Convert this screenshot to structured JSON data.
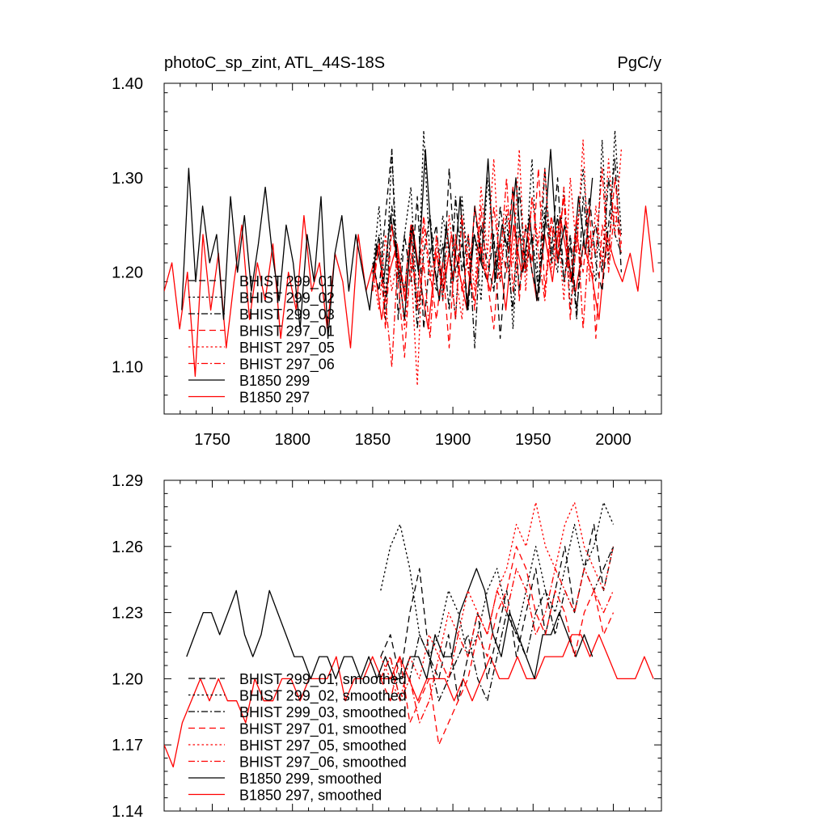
{
  "chart_data": [
    {
      "type": "line",
      "title_left": "photoC_sp_zint, ATL_44S-18S",
      "title_right": "PgC/y",
      "xlim": [
        1720,
        2030
      ],
      "ylim": [
        1.05,
        1.4
      ],
      "xticks": [
        1750,
        1800,
        1850,
        1900,
        1950,
        2000
      ],
      "xtick_labels": [
        "1750",
        "1800",
        "1850",
        "1900",
        "1950",
        "2000"
      ],
      "yticks": [
        1.1,
        1.2,
        1.3,
        1.4
      ],
      "ytick_labels": [
        "1.10",
        "1.20",
        "1.30",
        "1.40"
      ],
      "legend": [
        "BHIST 299_01",
        "BHIST 299_02",
        "BHIST 299_03",
        "BHIST 297_01",
        "BHIST 297_05",
        "BHIST 297_06",
        "B1850 299",
        "B1850 297"
      ],
      "series": [
        {
          "name": "BHIST 299_01",
          "color": "#000000",
          "dash": "dashed",
          "x_range": [
            1850,
            2005
          ],
          "values": [
            1.21,
            1.18,
            1.26,
            1.33,
            1.15,
            1.24,
            1.19,
            1.28,
            1.14,
            1.22,
            1.25,
            1.17,
            1.31,
            1.2,
            1.23,
            1.16,
            1.27,
            1.21,
            1.19,
            1.24,
            1.13,
            1.22,
            1.29,
            1.18,
            1.25,
            1.2,
            1.17,
            1.26,
            1.22,
            1.3,
            1.19,
            1.24,
            1.16,
            1.23,
            1.28,
            1.21,
            1.18,
            1.25,
            1.32,
            1.2
          ]
        },
        {
          "name": "BHIST 299_02",
          "color": "#000000",
          "dash": "dotted",
          "x_range": [
            1850,
            2005
          ],
          "values": [
            1.2,
            1.27,
            1.17,
            1.33,
            1.19,
            1.24,
            1.29,
            1.16,
            1.35,
            1.21,
            1.18,
            1.26,
            1.22,
            1.15,
            1.28,
            1.2,
            1.24,
            1.17,
            1.3,
            1.23,
            1.19,
            1.26,
            1.14,
            1.25,
            1.21,
            1.32,
            1.18,
            1.27,
            1.23,
            1.2,
            1.29,
            1.16,
            1.24,
            1.31,
            1.22,
            1.19,
            1.34,
            1.21,
            1.35,
            1.24
          ]
        },
        {
          "name": "BHIST 299_03",
          "color": "#000000",
          "dash": "dashdot",
          "x_range": [
            1850,
            2005
          ],
          "values": [
            1.19,
            1.24,
            1.15,
            1.27,
            1.21,
            1.18,
            1.25,
            1.14,
            1.22,
            1.26,
            1.19,
            1.23,
            1.16,
            1.28,
            1.2,
            1.24,
            1.12,
            1.25,
            1.21,
            1.18,
            1.27,
            1.22,
            1.16,
            1.29,
            1.2,
            1.24,
            1.18,
            1.31,
            1.21,
            1.26,
            1.19,
            1.23,
            1.15,
            1.28,
            1.22,
            1.25,
            1.2,
            1.3,
            1.24,
            1.22
          ]
        },
        {
          "name": "BHIST 297_01",
          "color": "#ff0000",
          "dash": "dashed",
          "x_range": [
            1850,
            2005
          ],
          "values": [
            1.18,
            1.23,
            1.14,
            1.25,
            1.19,
            1.11,
            1.22,
            1.17,
            1.26,
            1.2,
            1.15,
            1.21,
            1.12,
            1.24,
            1.18,
            1.22,
            1.16,
            1.27,
            1.19,
            1.14,
            1.23,
            1.2,
            1.29,
            1.17,
            1.25,
            1.21,
            1.31,
            1.18,
            1.26,
            1.22,
            1.28,
            1.15,
            1.24,
            1.2,
            1.27,
            1.13,
            1.25,
            1.22,
            1.3,
            1.23
          ]
        },
        {
          "name": "BHIST 297_05",
          "color": "#ff0000",
          "dash": "dotted",
          "x_range": [
            1850,
            2005
          ],
          "values": [
            1.2,
            1.16,
            1.24,
            1.18,
            1.22,
            1.14,
            1.21,
            1.08,
            1.25,
            1.19,
            1.23,
            1.17,
            1.26,
            1.2,
            1.15,
            1.24,
            1.18,
            1.29,
            1.22,
            1.32,
            1.19,
            1.27,
            1.21,
            1.33,
            1.18,
            1.28,
            1.23,
            1.31,
            1.2,
            1.25,
            1.17,
            1.3,
            1.22,
            1.34,
            1.19,
            1.27,
            1.21,
            1.32,
            1.24,
            1.33
          ]
        },
        {
          "name": "BHIST 297_06",
          "color": "#ff0000",
          "dash": "dashdot",
          "x_range": [
            1850,
            2005
          ],
          "values": [
            1.19,
            1.23,
            1.17,
            1.1,
            1.22,
            1.18,
            1.25,
            1.16,
            1.21,
            1.13,
            1.24,
            1.19,
            1.22,
            1.15,
            1.26,
            1.2,
            1.17,
            1.23,
            1.19,
            1.27,
            1.21,
            1.3,
            1.18,
            1.24,
            1.2,
            1.28,
            1.22,
            1.17,
            1.25,
            1.21,
            1.29,
            1.19,
            1.26,
            1.14,
            1.24,
            1.22,
            1.31,
            1.2,
            1.27,
            1.22
          ]
        },
        {
          "name": "B1850 299",
          "color": "#000000",
          "dash": "solid",
          "x_range": [
            1731,
            1987
          ],
          "values": [
            1.16,
            1.31,
            1.19,
            1.27,
            1.21,
            1.24,
            1.15,
            1.28,
            1.2,
            1.26,
            1.18,
            1.23,
            1.29,
            1.22,
            1.17,
            1.25,
            1.21,
            1.14,
            1.24,
            1.19,
            1.28,
            1.13,
            1.22,
            1.26,
            1.18,
            1.24,
            1.2,
            1.16,
            1.23,
            1.19,
            1.26,
            1.21,
            1.15,
            1.25,
            1.2,
            1.33,
            1.22,
            1.17,
            1.25,
            1.19,
            1.28,
            1.16,
            1.24,
            1.21,
            1.32,
            1.19,
            1.25,
            1.22,
            1.3,
            1.2,
            1.26,
            1.17,
            1.23,
            1.33,
            1.21,
            1.25,
            1.19,
            1.28,
            1.22,
            1.3
          ]
        },
        {
          "name": "B1850 297",
          "color": "#ff0000",
          "dash": "solid",
          "x_range": [
            1720,
            2025
          ],
          "values": [
            1.18,
            1.21,
            1.14,
            1.2,
            1.09,
            1.24,
            1.16,
            1.22,
            1.12,
            1.19,
            1.25,
            1.15,
            1.21,
            1.17,
            1.23,
            1.13,
            1.2,
            1.16,
            1.26,
            1.18,
            1.21,
            1.14,
            1.22,
            1.19,
            1.12,
            1.24,
            1.18,
            1.21,
            1.15,
            1.2,
            1.23,
            1.17,
            1.25,
            1.19,
            1.14,
            1.22,
            1.18,
            1.24,
            1.2,
            1.16,
            1.27,
            1.21,
            1.18,
            1.23,
            1.16,
            1.25,
            1.2,
            1.22,
            1.17,
            1.24,
            1.19,
            1.26,
            1.21,
            1.18,
            1.23,
            1.2,
            1.15,
            1.24,
            1.21,
            1.19,
            1.22,
            1.18,
            1.27,
            1.2
          ]
        }
      ]
    },
    {
      "type": "line",
      "xlim": [
        1720,
        2030
      ],
      "ylim": [
        1.14,
        1.29
      ],
      "yticks": [
        1.14,
        1.17,
        1.2,
        1.23,
        1.26,
        1.29
      ],
      "ytick_labels": [
        "1.14",
        "1.17",
        "1.20",
        "1.23",
        "1.26",
        "1.29"
      ],
      "legend": [
        "BHIST 299_01, smoothed",
        "BHIST 299_02, smoothed",
        "BHIST 299_03, smoothed",
        "BHIST 297_01, smoothed",
        "BHIST 297_05, smoothed",
        "BHIST 297_06, smoothed",
        "B1850 299, smoothed",
        "B1850 297, smoothed"
      ],
      "series": [
        {
          "name": "BHIST 299_01, smoothed",
          "color": "#000000",
          "dash": "dashed",
          "x_range": [
            1855,
            2000
          ],
          "values": [
            1.21,
            1.22,
            1.2,
            1.23,
            1.25,
            1.21,
            1.2,
            1.22,
            1.19,
            1.21,
            1.23,
            1.2,
            1.22,
            1.24,
            1.21,
            1.23,
            1.25,
            1.22,
            1.24,
            1.26,
            1.23,
            1.25,
            1.27,
            1.24,
            1.26
          ]
        },
        {
          "name": "BHIST 299_02, smoothed",
          "color": "#000000",
          "dash": "dotted",
          "x_range": [
            1855,
            2000
          ],
          "values": [
            1.24,
            1.26,
            1.27,
            1.25,
            1.22,
            1.21,
            1.22,
            1.24,
            1.23,
            1.21,
            1.22,
            1.24,
            1.25,
            1.23,
            1.22,
            1.24,
            1.26,
            1.24,
            1.23,
            1.25,
            1.27,
            1.25,
            1.26,
            1.28,
            1.27
          ]
        },
        {
          "name": "BHIST 299_03, smoothed",
          "color": "#000000",
          "dash": "dashdot",
          "x_range": [
            1855,
            2000
          ],
          "values": [
            1.2,
            1.21,
            1.19,
            1.2,
            1.22,
            1.21,
            1.19,
            1.2,
            1.21,
            1.22,
            1.2,
            1.19,
            1.21,
            1.23,
            1.22,
            1.21,
            1.23,
            1.24,
            1.22,
            1.24,
            1.23,
            1.25,
            1.24,
            1.25,
            1.26
          ]
        },
        {
          "name": "BHIST 297_01, smoothed",
          "color": "#ff0000",
          "dash": "dashed",
          "x_range": [
            1855,
            2000
          ],
          "values": [
            1.2,
            1.19,
            1.21,
            1.18,
            1.19,
            1.2,
            1.17,
            1.18,
            1.19,
            1.2,
            1.22,
            1.21,
            1.23,
            1.24,
            1.26,
            1.25,
            1.23,
            1.22,
            1.24,
            1.23,
            1.21,
            1.23,
            1.24,
            1.22,
            1.23
          ]
        },
        {
          "name": "BHIST 297_05, smoothed",
          "color": "#ff0000",
          "dash": "dotted",
          "x_range": [
            1855,
            2000
          ],
          "values": [
            1.21,
            1.2,
            1.19,
            1.21,
            1.2,
            1.22,
            1.21,
            1.23,
            1.22,
            1.24,
            1.23,
            1.22,
            1.24,
            1.25,
            1.27,
            1.26,
            1.28,
            1.26,
            1.25,
            1.27,
            1.28,
            1.26,
            1.25,
            1.24,
            1.26
          ]
        },
        {
          "name": "BHIST 297_06, smoothed",
          "color": "#ff0000",
          "dash": "dashdot",
          "x_range": [
            1855,
            2000
          ],
          "values": [
            1.2,
            1.21,
            1.19,
            1.2,
            1.18,
            1.19,
            1.21,
            1.2,
            1.22,
            1.21,
            1.23,
            1.22,
            1.24,
            1.23,
            1.25,
            1.24,
            1.22,
            1.23,
            1.25,
            1.24,
            1.23,
            1.25,
            1.24,
            1.23,
            1.24
          ]
        },
        {
          "name": "B1850 299, smoothed",
          "color": "#000000",
          "dash": "solid",
          "x_range": [
            1734,
            1987
          ],
          "values": [
            1.21,
            1.22,
            1.23,
            1.23,
            1.22,
            1.23,
            1.24,
            1.22,
            1.21,
            1.22,
            1.24,
            1.23,
            1.22,
            1.21,
            1.21,
            1.2,
            1.21,
            1.21,
            1.2,
            1.21,
            1.21,
            1.2,
            1.21,
            1.2,
            1.21,
            1.2,
            1.2,
            1.21,
            1.21,
            1.2,
            1.22,
            1.21,
            1.21,
            1.23,
            1.24,
            1.25,
            1.24,
            1.22,
            1.21,
            1.23,
            1.22,
            1.21,
            1.2,
            1.22,
            1.22,
            1.23,
            1.22,
            1.21,
            1.22,
            1.21
          ]
        },
        {
          "name": "B1850 297, smoothed",
          "color": "#ff0000",
          "dash": "solid",
          "x_range": [
            1720,
            2025
          ],
          "values": [
            1.17,
            1.16,
            1.18,
            1.19,
            1.2,
            1.19,
            1.2,
            1.19,
            1.19,
            1.18,
            1.2,
            1.19,
            1.19,
            1.2,
            1.2,
            1.19,
            1.2,
            1.2,
            1.2,
            1.21,
            1.19,
            1.2,
            1.2,
            1.21,
            1.2,
            1.2,
            1.21,
            1.2,
            1.19,
            1.2,
            1.2,
            1.2,
            1.19,
            1.2,
            1.19,
            1.2,
            1.21,
            1.2,
            1.2,
            1.21,
            1.2,
            1.2,
            1.21,
            1.21,
            1.21,
            1.22,
            1.22,
            1.21,
            1.22,
            1.21,
            1.2,
            1.2,
            1.2,
            1.21,
            1.2
          ]
        }
      ]
    }
  ]
}
